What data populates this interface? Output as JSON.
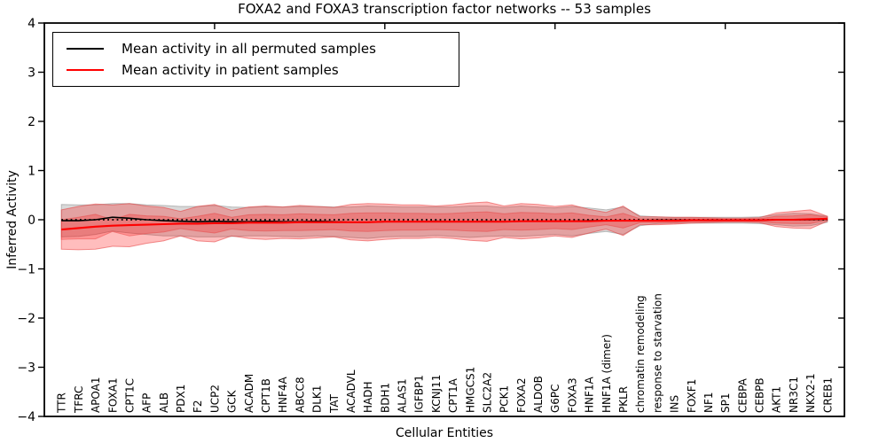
{
  "figure": {
    "title": "FOXA2 and FOXA3 transcription factor networks -- 53 samples",
    "xlabel": "Cellular Entities",
    "ylabel": "Inferred Activity"
  },
  "legend": {
    "items": [
      {
        "label": "Mean activity in all permuted samples",
        "color": "#000000"
      },
      {
        "label": "Mean activity in patient samples",
        "color": "#ff0000"
      }
    ]
  },
  "axes": {
    "ytick_labels": [
      "4",
      "3",
      "2",
      "1",
      "0",
      "−1",
      "−2",
      "−3",
      "−4"
    ],
    "x_major_tick_units": [
      10,
      20,
      30,
      40
    ]
  },
  "colors": {
    "permuted_line": "#000000",
    "patient_line": "#ff0000",
    "zero_line": "#000000",
    "permuted_band": "rgba(128,128,128,0.30)",
    "patient_band_outer": "rgba(255,0,0,0.26)",
    "patient_band_inner": "rgba(255,0,0,0.22)",
    "spine": "#000000"
  },
  "chart_data": {
    "type": "line",
    "title": "FOXA2 and FOXA3 transcription factor networks -- 53 samples",
    "xlabel": "Cellular Entities",
    "ylabel": "Inferred Activity",
    "ylim": [
      -4,
      4
    ],
    "grid": false,
    "legend_position": "upper left",
    "zero_reference": 0,
    "categories": [
      "TTR",
      "TFRC",
      "APOA1",
      "FOXA1",
      "CPT1C",
      "AFP",
      "ALB",
      "PDX1",
      "F2",
      "UCP2",
      "GCK",
      "ACADM",
      "CPT1B",
      "HNF4A",
      "ABCC8",
      "DLK1",
      "TAT",
      "ACADVL",
      "HADH",
      "BDH1",
      "ALAS1",
      "IGFBP1",
      "KCNJ11",
      "CPT1A",
      "HMGCS1",
      "SLC2A2",
      "PCK1",
      "FOXA2",
      "ALDOB",
      "G6PC",
      "FOXA3",
      "HNF1A",
      "HNF1A (dimer)",
      "PKLR",
      "chromatin remodeling",
      "response to starvation",
      "INS",
      "FOXF1",
      "NF1",
      "SP1",
      "CEBPA",
      "CEBPB",
      "AKT1",
      "NR3C1",
      "NKX2-1",
      "CREB1"
    ],
    "series": [
      {
        "name": "Mean activity in all permuted samples",
        "color": "#000000",
        "values": [
          -0.02,
          -0.02,
          0.0,
          0.05,
          0.03,
          0.0,
          -0.02,
          -0.03,
          -0.04,
          -0.03,
          -0.04,
          -0.04,
          -0.03,
          -0.04,
          -0.04,
          -0.03,
          -0.04,
          -0.05,
          -0.05,
          -0.04,
          -0.04,
          -0.04,
          -0.03,
          -0.04,
          -0.04,
          -0.03,
          -0.04,
          -0.03,
          -0.03,
          -0.03,
          -0.03,
          -0.02,
          -0.02,
          -0.02,
          -0.02,
          -0.01,
          -0.01,
          -0.01,
          -0.01,
          -0.01,
          -0.01,
          -0.01,
          0.0,
          0.0,
          0.0,
          0.01
        ]
      },
      {
        "name": "Mean activity in patient samples",
        "color": "#ff0000",
        "values": [
          -0.2,
          -0.17,
          -0.14,
          -0.12,
          -0.11,
          -0.1,
          -0.09,
          -0.08,
          -0.08,
          -0.07,
          -0.07,
          -0.06,
          -0.06,
          -0.06,
          -0.05,
          -0.05,
          -0.05,
          -0.05,
          -0.05,
          -0.04,
          -0.04,
          -0.04,
          -0.04,
          -0.04,
          -0.04,
          -0.04,
          -0.04,
          -0.03,
          -0.03,
          -0.03,
          -0.03,
          -0.03,
          -0.02,
          -0.02,
          -0.02,
          -0.02,
          -0.02,
          -0.01,
          -0.01,
          -0.01,
          -0.01,
          -0.01,
          0.0,
          0.0,
          0.01,
          0.02
        ]
      }
    ],
    "bands": [
      {
        "name": "permuted-std-band",
        "around_series": 0,
        "fill": "rgba(128,128,128,0.30)",
        "edge": "rgba(120,120,120,0.45)",
        "half_widths": [
          0.33,
          0.32,
          0.3,
          0.28,
          0.3,
          0.3,
          0.31,
          0.3,
          0.31,
          0.32,
          0.3,
          0.29,
          0.3,
          0.3,
          0.31,
          0.3,
          0.3,
          0.31,
          0.33,
          0.31,
          0.3,
          0.3,
          0.29,
          0.3,
          0.32,
          0.31,
          0.29,
          0.31,
          0.29,
          0.27,
          0.3,
          0.26,
          0.22,
          0.28,
          0.1,
          0.07,
          0.06,
          0.06,
          0.06,
          0.06,
          0.06,
          0.07,
          0.1,
          0.13,
          0.12,
          0.06
        ]
      },
      {
        "name": "patient-std-band-outer",
        "around_series": 1,
        "fill": "rgba(255,0,0,0.26)",
        "edge": "rgba(230,60,60,0.55)",
        "half_widths": [
          0.4,
          0.44,
          0.46,
          0.42,
          0.44,
          0.38,
          0.34,
          0.25,
          0.35,
          0.38,
          0.26,
          0.32,
          0.34,
          0.32,
          0.34,
          0.32,
          0.3,
          0.36,
          0.38,
          0.36,
          0.34,
          0.34,
          0.32,
          0.34,
          0.38,
          0.4,
          0.32,
          0.36,
          0.34,
          0.3,
          0.33,
          0.24,
          0.17,
          0.3,
          0.08,
          0.08,
          0.07,
          0.06,
          0.05,
          0.04,
          0.04,
          0.05,
          0.14,
          0.17,
          0.19,
          0.05
        ]
      },
      {
        "name": "patient-std-band-inner",
        "around_series": 1,
        "fill": "rgba(255,0,0,0.22)",
        "edge": "rgba(230,60,60,0.45)",
        "half_widths": [
          0.2,
          0.22,
          0.25,
          0.12,
          0.22,
          0.18,
          0.16,
          0.1,
          0.15,
          0.2,
          0.12,
          0.16,
          0.17,
          0.16,
          0.17,
          0.16,
          0.15,
          0.18,
          0.19,
          0.18,
          0.17,
          0.17,
          0.16,
          0.17,
          0.19,
          0.2,
          0.16,
          0.18,
          0.17,
          0.15,
          0.17,
          0.12,
          0.08,
          0.15,
          0.04,
          0.04,
          0.04,
          0.03,
          0.03,
          0.02,
          0.02,
          0.03,
          0.07,
          0.08,
          0.09,
          0.03
        ]
      }
    ]
  }
}
